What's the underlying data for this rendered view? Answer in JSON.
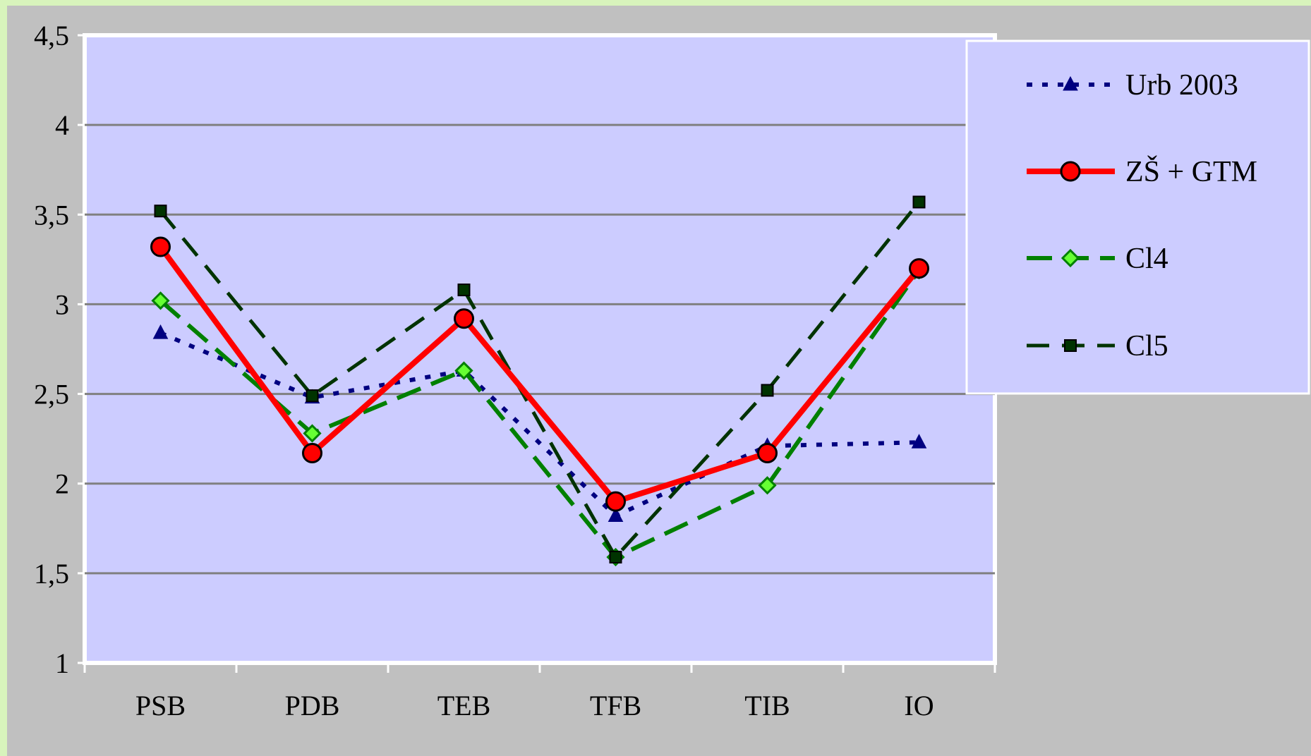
{
  "chart_data": {
    "type": "line",
    "categories": [
      "PSB",
      "PDB",
      "TEB",
      "TFB",
      "TIB",
      "IO"
    ],
    "y_ticks": [
      "1",
      "1,5",
      "2",
      "2,5",
      "3",
      "3,5",
      "4",
      "4,5"
    ],
    "ylim": [
      1,
      4.5
    ],
    "grid": true,
    "legend_position": "top-right",
    "series": [
      {
        "name": "Urb 2003",
        "values": [
          2.84,
          2.48,
          2.63,
          1.82,
          2.21,
          2.23
        ],
        "color": "#000080",
        "marker": "triangle",
        "dash": "dotted"
      },
      {
        "name": "ZŠ + GTM",
        "values": [
          3.32,
          2.17,
          2.92,
          1.9,
          2.17,
          3.2
        ],
        "color": "#ff0000",
        "marker": "circle",
        "dash": "solid"
      },
      {
        "name": "Cl4",
        "values": [
          3.02,
          2.28,
          2.63,
          1.59,
          1.99,
          3.19
        ],
        "color": "#008000",
        "marker": "diamond",
        "dash": "dashed"
      },
      {
        "name": "Cl5",
        "values": [
          3.52,
          2.49,
          3.08,
          1.59,
          2.52,
          3.57
        ],
        "color": "#003300",
        "marker": "square",
        "dash": "longdash"
      }
    ]
  }
}
